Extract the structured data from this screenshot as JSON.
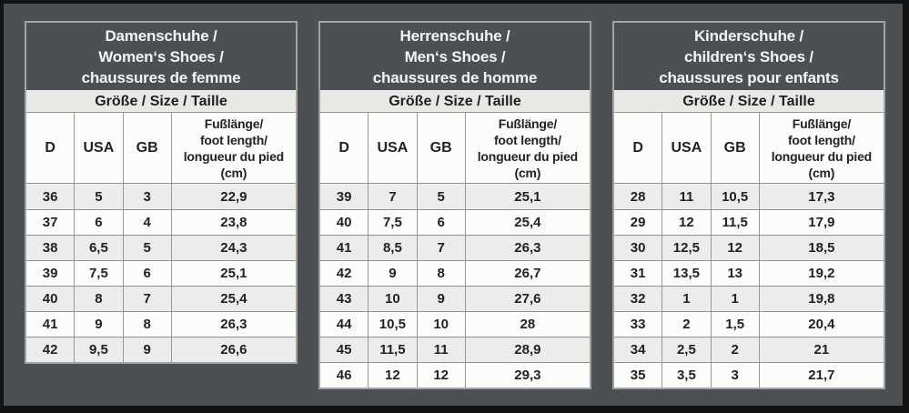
{
  "page": {
    "background": "#4d5053",
    "frame_color": "#131313",
    "table_border": "#a0a3a6",
    "size_row_bg": "#e9e8e5",
    "stripe_row_bg": "#edecea",
    "white_row_bg": "#fcfcfb",
    "title_text_color": "#f4f4f4",
    "cell_text_color": "#222222"
  },
  "tables": [
    {
      "title_lines": [
        "Damenschuhe /",
        "Women‘s Shoes /",
        "chaussures de femme"
      ],
      "size_header": "Größe / Size / Taille",
      "col_d": "D",
      "col_usa": "USA",
      "col_gb": "GB",
      "foot_length_lines": [
        "Fußlänge/",
        "foot length/",
        "longueur du pied",
        "(cm)"
      ],
      "rows": [
        [
          "36",
          "5",
          "3",
          "22,9"
        ],
        [
          "37",
          "6",
          "4",
          "23,8"
        ],
        [
          "38",
          "6,5",
          "5",
          "24,3"
        ],
        [
          "39",
          "7,5",
          "6",
          "25,1"
        ],
        [
          "40",
          "8",
          "7",
          "25,4"
        ],
        [
          "41",
          "9",
          "8",
          "26,3"
        ],
        [
          "42",
          "9,5",
          "9",
          "26,6"
        ]
      ]
    },
    {
      "title_lines": [
        "Herrenschuhe /",
        "Men‘s Shoes /",
        "chaussures de homme"
      ],
      "size_header": "Größe / Size / Taille",
      "col_d": "D",
      "col_usa": "USA",
      "col_gb": "GB",
      "foot_length_lines": [
        "Fußlänge/",
        "foot length/",
        "longueur du pied",
        "(cm)"
      ],
      "rows": [
        [
          "39",
          "7",
          "5",
          "25,1"
        ],
        [
          "40",
          "7,5",
          "6",
          "25,4"
        ],
        [
          "41",
          "8,5",
          "7",
          "26,3"
        ],
        [
          "42",
          "9",
          "8",
          "26,7"
        ],
        [
          "43",
          "10",
          "9",
          "27,6"
        ],
        [
          "44",
          "10,5",
          "10",
          "28"
        ],
        [
          "45",
          "11,5",
          "11",
          "28,9"
        ],
        [
          "46",
          "12",
          "12",
          "29,3"
        ]
      ]
    },
    {
      "title_lines": [
        "Kinderschuhe /",
        "children‘s Shoes /",
        "chaussures pour enfants"
      ],
      "size_header": "Größe / Size / Taille",
      "col_d": "D",
      "col_usa": "USA",
      "col_gb": "GB",
      "foot_length_lines": [
        "Fußlänge/",
        "foot length/",
        "longueur du pied",
        "(cm)"
      ],
      "rows": [
        [
          "28",
          "11",
          "10,5",
          "17,3"
        ],
        [
          "29",
          "12",
          "11,5",
          "17,9"
        ],
        [
          "30",
          "12,5",
          "12",
          "18,5"
        ],
        [
          "31",
          "13,5",
          "13",
          "19,2"
        ],
        [
          "32",
          "1",
          "1",
          "19,8"
        ],
        [
          "33",
          "2",
          "1,5",
          "20,4"
        ],
        [
          "34",
          "2,5",
          "2",
          "21"
        ],
        [
          "35",
          "3,5",
          "3",
          "21,7"
        ]
      ]
    }
  ]
}
